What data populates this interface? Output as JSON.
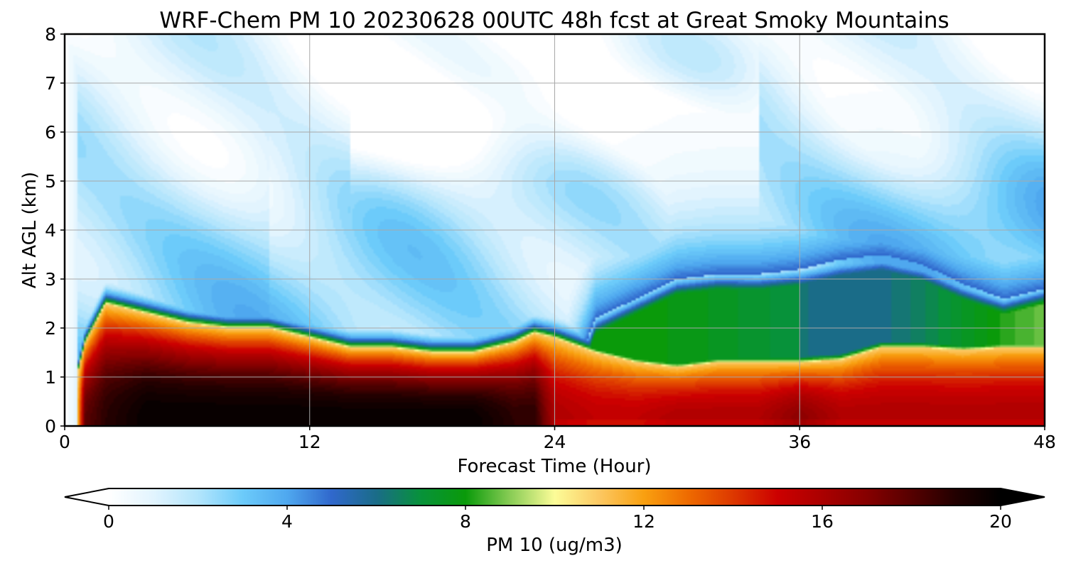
{
  "chart_data": {
    "type": "heatmap",
    "title": "WRF-Chem PM 10  20230628 00UTC 48h fcst at Great Smoky Mountains",
    "xlabel": "Forecast Time (Hour)",
    "ylabel": "Alt AGL (km)",
    "xlim": [
      0,
      48
    ],
    "ylim": [
      0,
      8
    ],
    "x_ticks": [
      "0",
      "12",
      "24",
      "36",
      "48"
    ],
    "y_ticks": [
      "0",
      "1",
      "2",
      "3",
      "4",
      "5",
      "6",
      "7",
      "8"
    ],
    "grid": true,
    "colorbar": {
      "label": "PM 10  (ug/m3)",
      "range": [
        0,
        20
      ],
      "ticks": [
        "0",
        "4",
        "8",
        "12",
        "16",
        "20"
      ],
      "extend": "both",
      "orientation": "horizontal",
      "stops": [
        {
          "value": 0,
          "color": "#ffffff"
        },
        {
          "value": 1,
          "color": "#e2f4fe"
        },
        {
          "value": 2,
          "color": "#b3e5fc"
        },
        {
          "value": 3,
          "color": "#6ccbfa"
        },
        {
          "value": 4,
          "color": "#4fa8ef"
        },
        {
          "value": 5,
          "color": "#3068cc"
        },
        {
          "value": 6,
          "color": "#1a6c88"
        },
        {
          "value": 7,
          "color": "#07923a"
        },
        {
          "value": 8,
          "color": "#0a9a0a"
        },
        {
          "value": 9,
          "color": "#88cc55"
        },
        {
          "value": 10,
          "color": "#fcfc98"
        },
        {
          "value": 11,
          "color": "#fcc862"
        },
        {
          "value": 12,
          "color": "#f9a010"
        },
        {
          "value": 13,
          "color": "#ee6a00"
        },
        {
          "value": 14,
          "color": "#dd3800"
        },
        {
          "value": 15,
          "color": "#cc0000"
        },
        {
          "value": 16,
          "color": "#aa0000"
        },
        {
          "value": 17,
          "color": "#860000"
        },
        {
          "value": 18,
          "color": "#560000"
        },
        {
          "value": 19,
          "color": "#220000"
        },
        {
          "value": 20,
          "color": "#000000"
        }
      ]
    },
    "field_description": {
      "time_hours": [
        0,
        1,
        2,
        4,
        6,
        8,
        10,
        12,
        14,
        16,
        18,
        20,
        22,
        23,
        24,
        26,
        28,
        30,
        32,
        34,
        36,
        38,
        40,
        42,
        44,
        46,
        48
      ],
      "boundary_layer_top_km": [
        0.0,
        1.7,
        2.5,
        2.3,
        2.1,
        2.0,
        2.0,
        1.8,
        1.6,
        1.6,
        1.5,
        1.5,
        1.7,
        1.9,
        1.8,
        1.5,
        1.3,
        1.2,
        1.3,
        1.3,
        1.3,
        1.35,
        1.6,
        1.6,
        1.55,
        1.6,
        1.6
      ],
      "elevated_layer_top_km": [
        0,
        0,
        0,
        0,
        0,
        0,
        0,
        0,
        0,
        0,
        0,
        0,
        0,
        0,
        0,
        2.2,
        2.6,
        3.0,
        3.1,
        3.1,
        3.2,
        3.4,
        3.5,
        3.3,
        2.9,
        2.6,
        2.8
      ],
      "surface_max_ugm3": [
        0,
        18,
        19,
        20,
        20,
        20,
        20,
        20,
        20,
        20,
        20,
        20,
        19,
        19,
        16,
        15.5,
        15.5,
        16,
        16,
        16,
        17,
        16,
        16,
        16,
        16,
        16,
        16
      ]
    }
  }
}
